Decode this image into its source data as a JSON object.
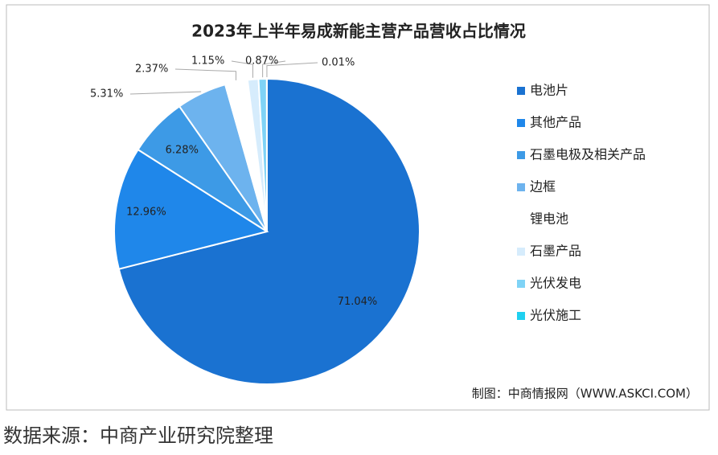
{
  "chart_data": {
    "type": "pie",
    "title": "2023年上半年易成新能主营产品营收占比情况",
    "categories": [
      "电池片",
      "其他产品",
      "石墨电极及相关产品",
      "边框",
      "锂电池",
      "石墨产品",
      "光伏发电",
      "光伏施工"
    ],
    "values": [
      71.04,
      12.96,
      6.28,
      5.31,
      2.37,
      1.15,
      0.87,
      0.01
    ],
    "value_labels": [
      "71.04%",
      "12.96%",
      "6.28%",
      "5.31%",
      "2.37%",
      "1.15%",
      "0.87%",
      "0.01%"
    ],
    "colors": [
      "#1a72d1",
      "#1f87ea",
      "#3d9ae6",
      "#6db3ee",
      "#ffffff",
      "#d6ecfc",
      "#7fd3f6",
      "#1fd0f0"
    ],
    "legend": "right",
    "source": "制图：中商情报网（WWW.ASKCI.COM）"
  },
  "footer": "数据来源：中商产业研究院整理"
}
